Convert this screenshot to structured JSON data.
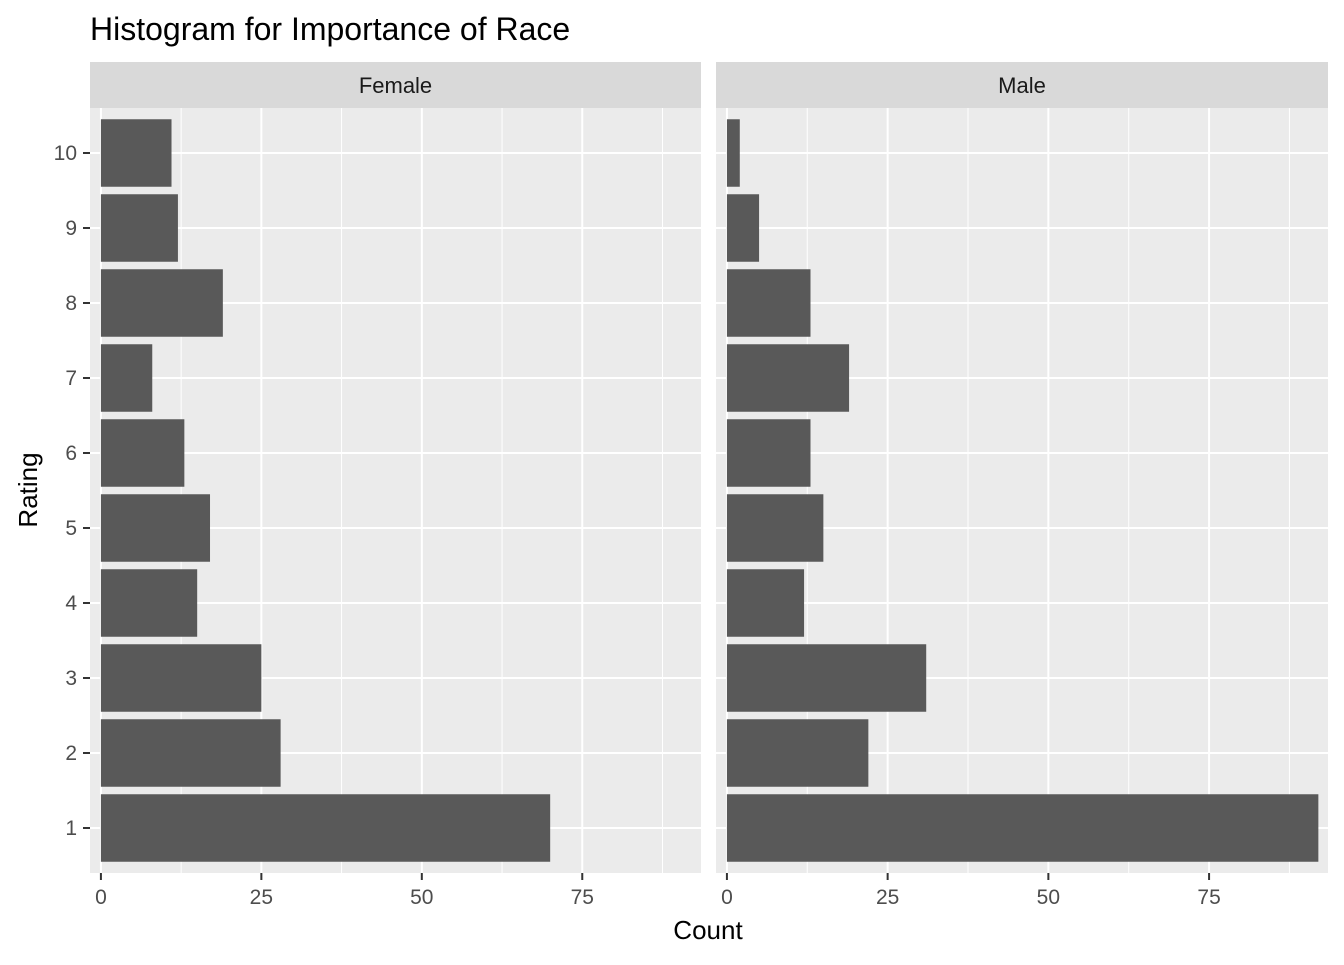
{
  "chart_data": {
    "type": "bar",
    "orientation": "horizontal",
    "title": "Histogram for Importance of Race",
    "xlabel": "Count",
    "ylabel": "Rating",
    "categories": [
      "1",
      "2",
      "3",
      "4",
      "5",
      "6",
      "7",
      "8",
      "9",
      "10"
    ],
    "xlim": [
      -1.7,
      93.5
    ],
    "xticks": [
      0,
      25,
      50,
      75
    ],
    "grid": true,
    "legend": "none",
    "colors": {
      "bar": "#595959",
      "panel_bg": "#ebebeb",
      "strip_bg": "#d9d9d9",
      "grid": "#ffffff"
    },
    "facets": [
      {
        "name": "Female",
        "values": [
          70,
          28,
          25,
          15,
          17,
          13,
          8,
          19,
          12,
          11
        ]
      },
      {
        "name": "Male",
        "values": [
          92,
          22,
          31,
          12,
          15,
          13,
          19,
          13,
          5,
          2
        ]
      }
    ]
  }
}
